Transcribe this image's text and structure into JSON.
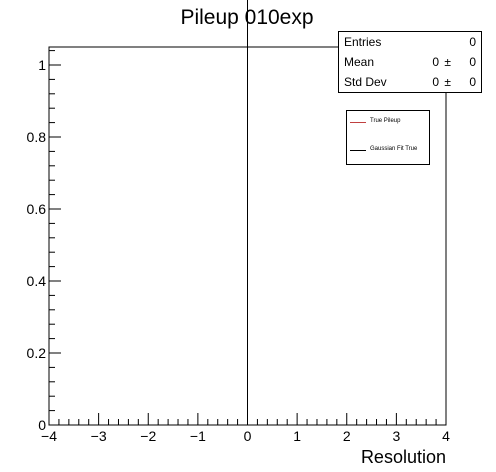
{
  "chart_data": {
    "type": "line",
    "title": "Pileup 010exp",
    "xlabel": "Resolution",
    "ylabel": "",
    "xlim": [
      -4,
      4
    ],
    "ylim": [
      0,
      1.05
    ],
    "x_ticks": [
      -4,
      -3,
      -2,
      -1,
      0,
      1,
      2,
      3,
      4
    ],
    "x_tick_labels": [
      "−4",
      "−3",
      "−2",
      "−1",
      "0",
      "1",
      "2",
      "3",
      "4"
    ],
    "y_ticks": [
      0,
      0.2,
      0.4,
      0.6,
      0.8,
      1
    ],
    "y_tick_labels": [
      "0",
      "0.2",
      "0.4",
      "0.6",
      "0.8",
      "1"
    ],
    "grid": false,
    "series": [
      {
        "name": "True Pileup",
        "color": "#c04040",
        "x": [],
        "y": []
      },
      {
        "name": "Gaussian Fit True",
        "color": "#000000",
        "x": [],
        "y": []
      }
    ],
    "vertical_line": {
      "x": 0,
      "color": "#000000"
    },
    "legend_position": "upper-right"
  },
  "stats": {
    "entries_label": "Entries",
    "entries_value": "0",
    "mean_label": "Mean",
    "mean_value": "0",
    "mean_pm": "±",
    "mean_error": "0",
    "stddev_label": "Std Dev",
    "stddev_value": "0",
    "stddev_pm": "±",
    "stddev_error": "0"
  }
}
